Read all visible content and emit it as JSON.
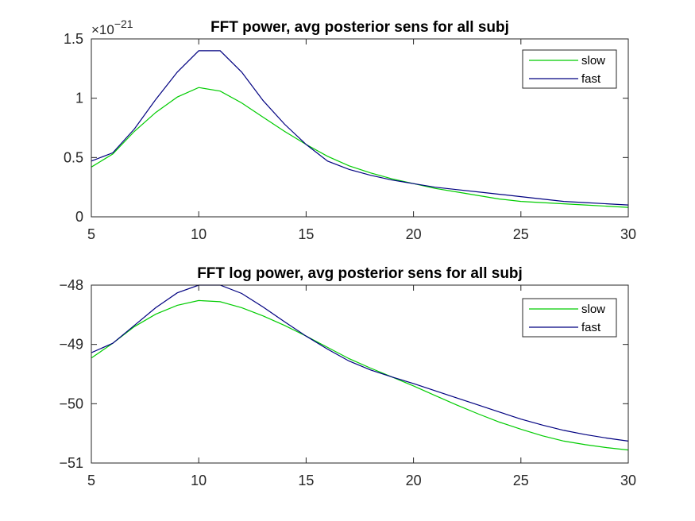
{
  "chart_data": [
    {
      "type": "line",
      "title": "FFT power, avg posterior sens for all subj",
      "multiplier_label": "×10",
      "multiplier_exponent": "−21",
      "xlim": [
        5,
        30
      ],
      "ylim": [
        0,
        1.5
      ],
      "xticks": [
        5,
        10,
        15,
        20,
        25,
        30
      ],
      "xtick_labels": [
        "5",
        "10",
        "15",
        "20",
        "25",
        "30"
      ],
      "yticks": [
        0,
        0.5,
        1,
        1.5
      ],
      "ytick_labels": [
        "0",
        "0.5",
        "1",
        "1.5"
      ],
      "grid": false,
      "legend_position": "top-right",
      "x": [
        5,
        6,
        7,
        8,
        9,
        10,
        11,
        12,
        13,
        14,
        15,
        16,
        17,
        18,
        19,
        20,
        21,
        22,
        23,
        24,
        25,
        26,
        27,
        28,
        29,
        30
      ],
      "series": [
        {
          "name": "slow",
          "color": "#00cc00",
          "values": [
            0.42,
            0.53,
            0.72,
            0.88,
            1.01,
            1.09,
            1.06,
            0.96,
            0.84,
            0.72,
            0.61,
            0.51,
            0.43,
            0.37,
            0.32,
            0.28,
            0.24,
            0.21,
            0.18,
            0.15,
            0.13,
            0.12,
            0.11,
            0.1,
            0.09,
            0.08
          ]
        },
        {
          "name": "fast",
          "color": "#000080",
          "values": [
            0.47,
            0.54,
            0.74,
            0.99,
            1.22,
            1.4,
            1.4,
            1.22,
            0.98,
            0.78,
            0.61,
            0.47,
            0.4,
            0.35,
            0.31,
            0.28,
            0.25,
            0.23,
            0.21,
            0.19,
            0.17,
            0.15,
            0.13,
            0.12,
            0.11,
            0.1
          ]
        }
      ]
    },
    {
      "type": "line",
      "title": "FFT log power, avg posterior sens for all subj",
      "xlim": [
        5,
        30
      ],
      "ylim": [
        -51,
        -48
      ],
      "xticks": [
        5,
        10,
        15,
        20,
        25,
        30
      ],
      "xtick_labels": [
        "5",
        "10",
        "15",
        "20",
        "25",
        "30"
      ],
      "yticks": [
        -51,
        -50,
        -49,
        -48
      ],
      "ytick_labels": [
        "−51",
        "−50",
        "−49",
        "−48"
      ],
      "grid": false,
      "legend_position": "top-right",
      "x": [
        5,
        6,
        7,
        8,
        9,
        10,
        11,
        12,
        13,
        14,
        15,
        16,
        17,
        18,
        19,
        20,
        21,
        22,
        23,
        24,
        25,
        26,
        27,
        28,
        29,
        30
      ],
      "series": [
        {
          "name": "slow",
          "color": "#00cc00",
          "values": [
            -49.23,
            -48.98,
            -48.7,
            -48.49,
            -48.34,
            -48.26,
            -48.28,
            -48.38,
            -48.52,
            -48.68,
            -48.86,
            -49.05,
            -49.24,
            -49.4,
            -49.55,
            -49.7,
            -49.86,
            -50.02,
            -50.17,
            -50.31,
            -50.43,
            -50.54,
            -50.63,
            -50.69,
            -50.74,
            -50.78
          ]
        },
        {
          "name": "fast",
          "color": "#000080",
          "values": [
            -49.14,
            -48.98,
            -48.68,
            -48.38,
            -48.13,
            -48.0,
            -48.0,
            -48.14,
            -48.37,
            -48.62,
            -48.86,
            -49.08,
            -49.28,
            -49.43,
            -49.55,
            -49.66,
            -49.78,
            -49.9,
            -50.02,
            -50.14,
            -50.26,
            -50.36,
            -50.45,
            -50.52,
            -50.58,
            -50.63
          ]
        }
      ]
    }
  ]
}
